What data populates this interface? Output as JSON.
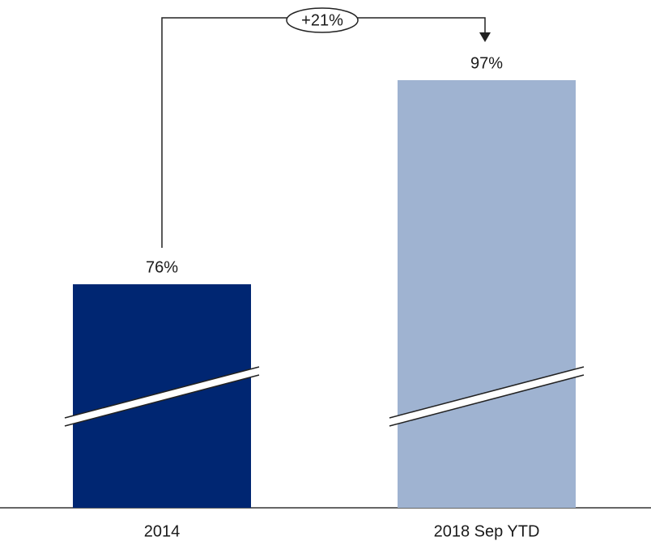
{
  "chart_data": {
    "type": "bar",
    "categories": [
      "2014",
      "2018 Sep YTD"
    ],
    "values": [
      76,
      97
    ],
    "value_labels": [
      "76%",
      "97%"
    ],
    "colors": [
      "#002672",
      "#9fb3d1"
    ],
    "ylim": [
      53,
      105
    ],
    "annotation": "+21%"
  }
}
